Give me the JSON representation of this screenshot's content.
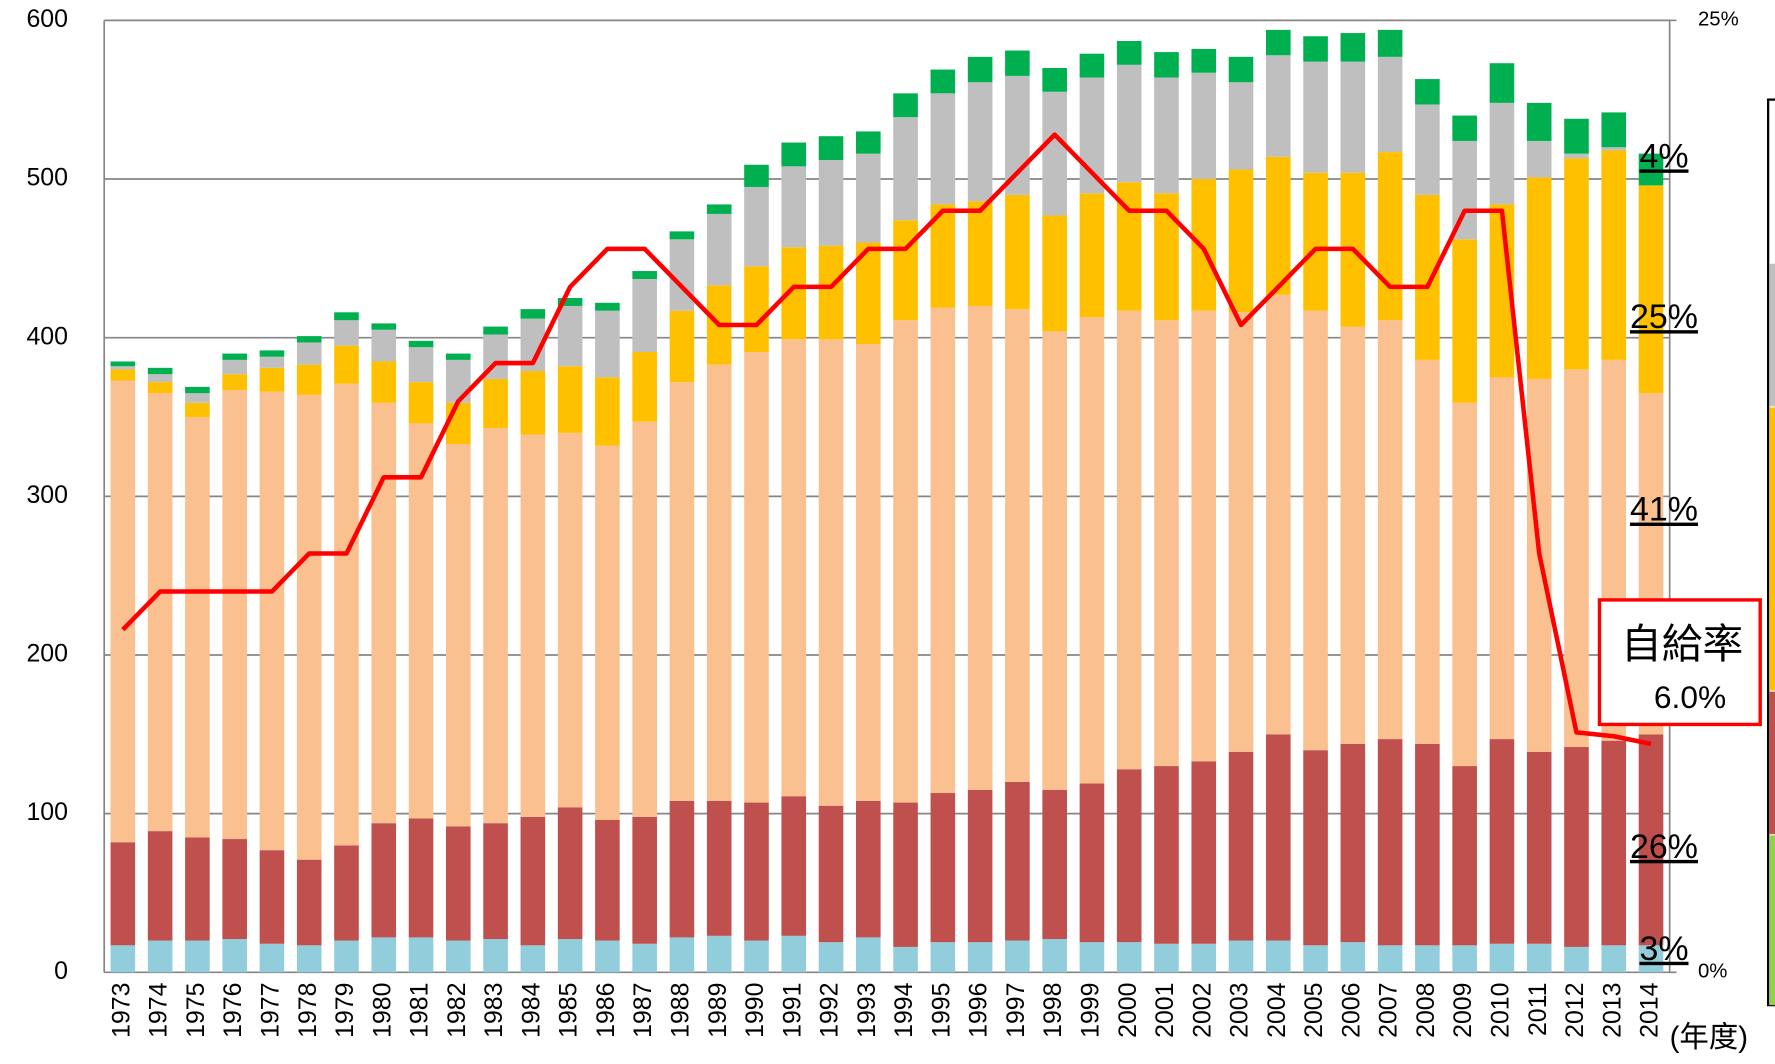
{
  "chart_data": {
    "type": "bar",
    "stacked": true,
    "categories": [
      "1973",
      "1974",
      "1975",
      "1976",
      "1977",
      "1978",
      "1979",
      "1980",
      "1981",
      "1982",
      "1983",
      "1984",
      "1985",
      "1986",
      "1987",
      "1988",
      "1989",
      "1990",
      "1991",
      "1992",
      "1993",
      "1994",
      "1995",
      "1996",
      "1997",
      "1998",
      "1999",
      "2000",
      "2001",
      "2002",
      "2003",
      "2004",
      "2005",
      "2006",
      "2007",
      "2008",
      "2009",
      "2010",
      "2011",
      "2012",
      "2013",
      "2014"
    ],
    "x_unit_label": "(年度)",
    "series": [
      {
        "color": "#92cddc",
        "values": [
          17,
          20,
          20,
          21,
          18,
          17,
          20,
          22,
          22,
          20,
          21,
          17,
          21,
          20,
          18,
          22,
          23,
          20,
          23,
          19,
          22,
          16,
          19,
          19,
          20,
          21,
          19,
          19,
          18,
          18,
          20,
          20,
          17,
          19,
          17,
          17,
          17,
          18,
          18,
          16,
          17,
          17
        ]
      },
      {
        "color": "#c0504d",
        "values": [
          65,
          69,
          65,
          63,
          59,
          54,
          60,
          72,
          75,
          72,
          73,
          81,
          83,
          76,
          80,
          86,
          85,
          87,
          88,
          86,
          86,
          91,
          94,
          96,
          100,
          94,
          100,
          109,
          112,
          115,
          119,
          130,
          123,
          125,
          130,
          127,
          113,
          129,
          121,
          126,
          129,
          133
        ]
      },
      {
        "color": "#fac090",
        "values": [
          291,
          276,
          265,
          283,
          289,
          293,
          291,
          265,
          249,
          241,
          249,
          241,
          236,
          236,
          249,
          264,
          275,
          284,
          288,
          294,
          288,
          304,
          306,
          305,
          298,
          289,
          294,
          289,
          281,
          284,
          277,
          277,
          277,
          263,
          264,
          242,
          229,
          228,
          235,
          238,
          240,
          215
        ]
      },
      {
        "color": "#ffc000",
        "values": [
          7,
          7,
          9,
          10,
          15,
          19,
          24,
          26,
          26,
          26,
          31,
          40,
          42,
          43,
          44,
          45,
          50,
          54,
          58,
          59,
          64,
          63,
          65,
          66,
          72,
          73,
          78,
          81,
          80,
          83,
          90,
          87,
          87,
          97,
          106,
          104,
          103,
          109,
          127,
          133,
          132,
          131
        ]
      },
      {
        "color": "#bfbfbf",
        "values": [
          2,
          5,
          6,
          9,
          7,
          14,
          16,
          20,
          22,
          27,
          28,
          33,
          38,
          42,
          46,
          45,
          45,
          50,
          51,
          54,
          56,
          65,
          70,
          75,
          75,
          78,
          73,
          74,
          73,
          67,
          55,
          64,
          70,
          70,
          60,
          57,
          62,
          64,
          23,
          3,
          2,
          0
        ]
      },
      {
        "color": "#00b050",
        "values": [
          3,
          4,
          4,
          4,
          4,
          4,
          5,
          4,
          4,
          4,
          5,
          6,
          5,
          5,
          5,
          5,
          6,
          14,
          15,
          15,
          14,
          15,
          15,
          16,
          16,
          15,
          15,
          15,
          16,
          15,
          16,
          16,
          16,
          18,
          17,
          16,
          16,
          25,
          24,
          22,
          22,
          20
        ]
      },
      {
        "type": "line",
        "axis": "y2",
        "color": "#ff0000",
        "values": [
          9,
          10,
          10,
          10,
          10,
          11,
          11,
          13,
          13,
          15,
          16,
          16,
          18,
          19,
          19,
          18,
          17,
          17,
          18,
          18,
          19,
          19,
          20,
          20,
          21,
          22,
          21,
          20,
          20,
          19,
          17,
          18,
          19,
          19,
          18,
          18,
          20,
          20,
          11,
          6.3,
          6.2,
          6.0
        ]
      }
    ],
    "ylim": [
      0,
      600
    ],
    "yticks": [
      0,
      100,
      200,
      300,
      400,
      500,
      600
    ],
    "y2lim": [
      0,
      25
    ],
    "y2ticks": [
      {
        "value": 0,
        "label": "0%"
      },
      {
        "value": 25,
        "label": "25%"
      }
    ],
    "grid": true,
    "share_labels": [
      "4%",
      "25%",
      "41%",
      "26%",
      "3%"
    ],
    "callout": {
      "title": "自給率",
      "value": 6.0,
      "label": "6.0%"
    }
  }
}
